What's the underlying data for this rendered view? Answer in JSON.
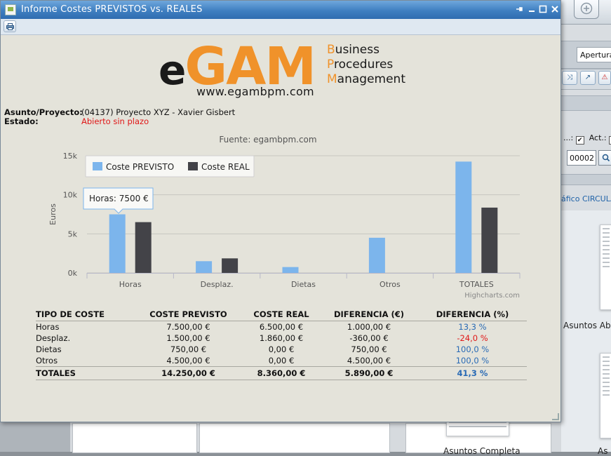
{
  "window": {
    "title": "Informe Costes PREVISTOS vs. REALES",
    "buttons": [
      "pin-icon",
      "minimize-icon",
      "maximize-icon",
      "close-icon"
    ]
  },
  "toolbar": {
    "print_icon": "print-icon"
  },
  "logo": {
    "e": "e",
    "gam": "GAM",
    "line1_cap": "B",
    "line1_rest": "usiness",
    "line2_cap": "P",
    "line2_rest": "rocedures",
    "line3_cap": "M",
    "line3_rest": "anagement",
    "url": "www.egambpm.com"
  },
  "report": {
    "asunto_label": "Asunto/Proyecto:",
    "asunto_value": "(04137) Proyecto XYZ - Xavier Gisbert",
    "estado_label": "Estado:",
    "estado_value": "Abierto sin plazo"
  },
  "chart_data": {
    "type": "bar",
    "title": "Fuente: egambpm.com",
    "ylabel": "Euros",
    "xlabel": "",
    "categories": [
      "Horas",
      "Desplaz.",
      "Dietas",
      "Otros",
      "TOTALES"
    ],
    "series": [
      {
        "name": "Coste PREVISTO",
        "color": "#7cb5ec",
        "values": [
          7500,
          1500,
          750,
          4500,
          14250
        ]
      },
      {
        "name": "Coste REAL",
        "color": "#434348",
        "values": [
          6500,
          1860,
          0,
          0,
          8360
        ]
      }
    ],
    "ylim": [
      0,
      15000
    ],
    "yticks": [
      0,
      5000,
      10000,
      15000
    ],
    "ytick_labels": [
      "0k",
      "5k",
      "10k",
      "15k"
    ],
    "legend": "top-left",
    "tooltip": "Horas: 7500 €",
    "credits": "Highcharts.com",
    "grid": true
  },
  "table": {
    "headers": [
      "TIPO DE COSTE",
      "COSTE PREVISTO",
      "COSTE REAL",
      "DIFERENCIA (€)",
      "DIFERENCIA (%)"
    ],
    "rows": [
      [
        "Horas",
        "7.500,00 €",
        "6.500,00 €",
        "1.000,00 €",
        "13,3 %"
      ],
      [
        "Desplaz.",
        "1.500,00 €",
        "1.860,00 €",
        "-360,00 €",
        "-24,0 %"
      ],
      [
        "Dietas",
        "750,00 €",
        "0,00 €",
        "750,00 €",
        "100,0 %"
      ],
      [
        "Otros",
        "4.500,00 €",
        "0,00 €",
        "4.500,00 €",
        "100,0 %"
      ]
    ],
    "totals": [
      "TOTALES",
      "14.250,00 €",
      "8.360,00 €",
      "5.890,00 €",
      "41,3 %"
    ]
  },
  "background": {
    "apertura": "Apertura",
    "act_label1": "...:",
    "act_label2": "Act.:",
    "code_value": "00002",
    "link_text": "áfico CIRCULA",
    "caption_right": "Asuntos Abie",
    "caption_bottom": "Asuntos Completa",
    "caption_bottom2": "As"
  },
  "colors": {
    "titlebar": "#3f7fc1",
    "accent_orange": "#f0922a",
    "positive_pct": "#2a6bb5",
    "negative_pct": "#e01818"
  }
}
